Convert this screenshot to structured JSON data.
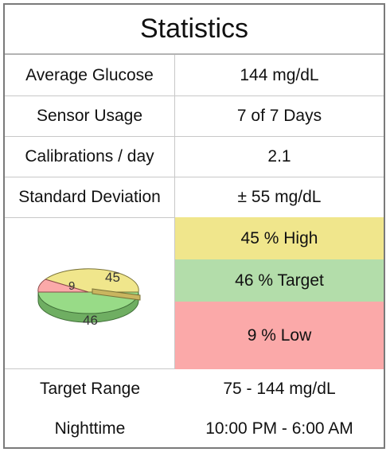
{
  "title": "Statistics",
  "rows": [
    {
      "label": "Average Glucose",
      "value": "144 mg/dL"
    },
    {
      "label": "Sensor Usage",
      "value": "7 of 7 Days"
    },
    {
      "label": "Calibrations / day",
      "value": "2.1"
    },
    {
      "label": "Standard Deviation",
      "value": "± 55 mg/dL"
    }
  ],
  "pie": {
    "labels": [
      "45",
      "46",
      "9"
    ],
    "colors": {
      "high": "#f0e68c",
      "target": "#b3ddaa",
      "low": "#fba9a9"
    }
  },
  "bands": {
    "high": "45 % High",
    "target": "46 % Target",
    "low": "9 % Low"
  },
  "bottom": [
    {
      "label": "Target Range",
      "value": "75 - 144 mg/dL"
    },
    {
      "label": "Nighttime",
      "value": "10:00 PM - 6:00 AM"
    }
  ]
}
